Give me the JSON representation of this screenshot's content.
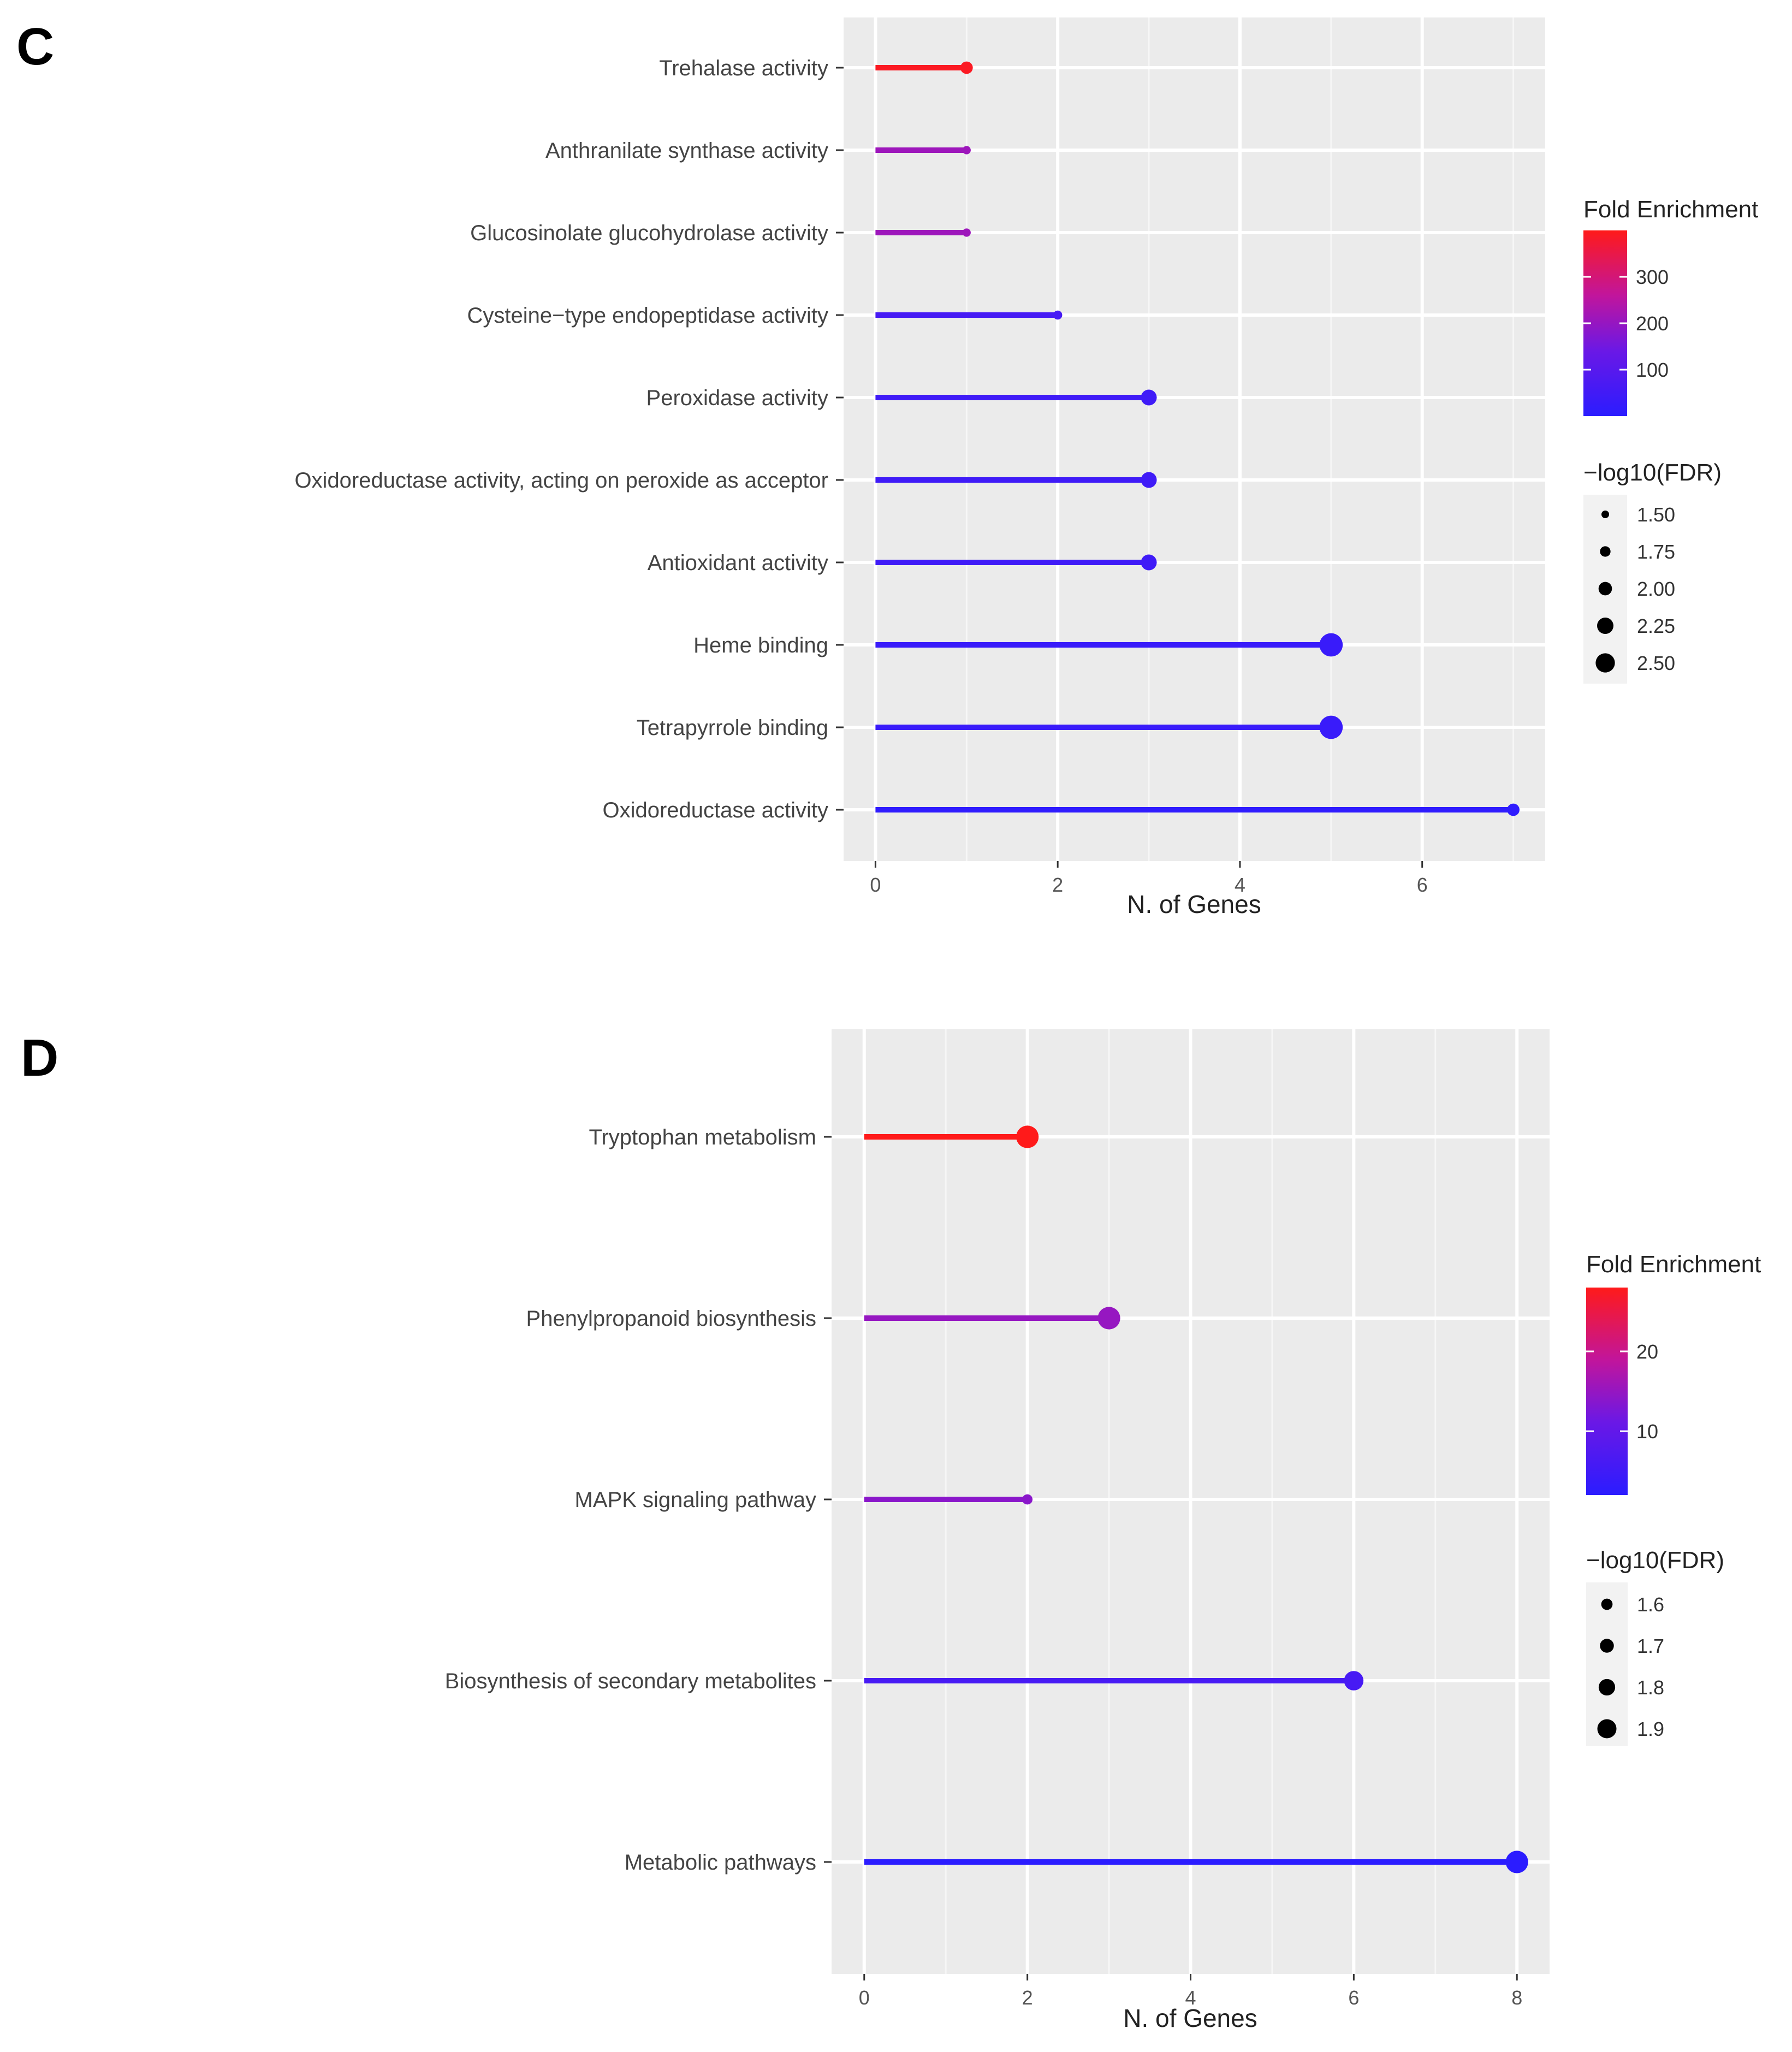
{
  "chart_data": [
    {
      "panel": "C",
      "type": "lollipop",
      "orientation": "horizontal",
      "xlabel": "N. of Genes",
      "xticks": [
        0,
        2,
        4,
        6
      ],
      "xlim": [
        -0.35,
        7.35
      ],
      "categories": [
        "Trehalase activity",
        "Anthranilate synthase activity",
        "Glucosinolate glucohydrolase activity",
        "Cysteine−type endopeptidase activity",
        "Peroxidase activity",
        "Oxidoreductase activity, acting on peroxide as acceptor",
        "Antioxidant activity",
        "Heme binding",
        "Tetrapyrrole binding",
        "Oxidoreductase activity"
      ],
      "values": [
        1,
        1,
        1,
        2,
        3,
        3,
        3,
        5,
        5,
        7
      ],
      "fold_enrichment": [
        390,
        210,
        210,
        60,
        45,
        45,
        45,
        30,
        30,
        8
      ],
      "neg_log10_fdr": [
        1.75,
        1.45,
        1.45,
        1.5,
        2.0,
        2.0,
        2.0,
        2.55,
        2.55,
        1.75
      ],
      "color_legend": {
        "title": "Fold Enrichment",
        "ticks": [
          100,
          200,
          300
        ],
        "tick_labels": [
          "100",
          "200",
          "300"
        ],
        "range": [
          0,
          400
        ]
      },
      "size_legend": {
        "title": "−log10(FDR)",
        "values": [
          1.5,
          1.75,
          2.0,
          2.25,
          2.5
        ],
        "labels": [
          "1.50",
          "1.75",
          "2.00",
          "2.25",
          "2.50"
        ]
      }
    },
    {
      "panel": "D",
      "type": "lollipop",
      "orientation": "horizontal",
      "xlabel": "N. of Genes",
      "xticks": [
        0,
        2,
        4,
        6,
        8
      ],
      "xlim": [
        -0.4,
        8.4
      ],
      "categories": [
        "Tryptophan metabolism",
        "Phenylpropanoid biosynthesis",
        "MAPK signaling pathway",
        "Biosynthesis of secondary metabolites",
        "Metabolic pathways"
      ],
      "values": [
        2,
        3,
        2,
        6,
        8
      ],
      "fold_enrichment": [
        28,
        15,
        14,
        6,
        2
      ],
      "neg_log10_fdr": [
        1.9,
        1.9,
        1.5,
        1.8,
        1.9
      ],
      "color_legend": {
        "title": "Fold Enrichment",
        "ticks": [
          10,
          20
        ],
        "tick_labels": [
          "10",
          "20"
        ],
        "range": [
          2,
          28
        ]
      },
      "size_legend": {
        "title": "−log10(FDR)",
        "values": [
          1.6,
          1.7,
          1.8,
          1.9
        ],
        "labels": [
          "1.6",
          "1.7",
          "1.8",
          "1.9"
        ]
      }
    }
  ]
}
